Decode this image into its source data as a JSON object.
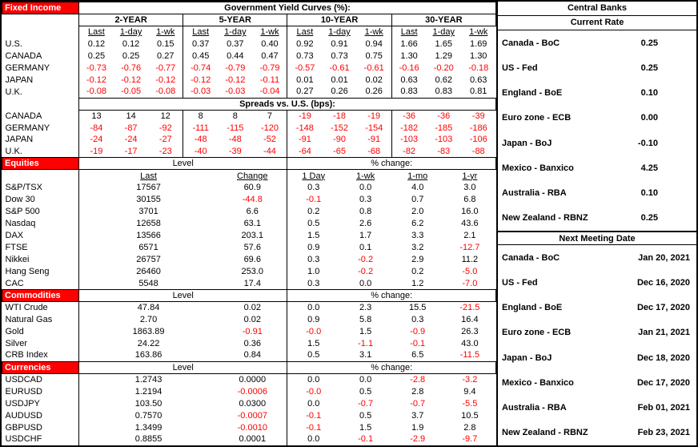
{
  "colors": {
    "accent_red": "#FF0000",
    "section_header_text": "#FFFFFF",
    "border_black": "#000000"
  },
  "fixed_income": {
    "section_label": "Fixed Income",
    "title": "Government Yield Curves (%):",
    "groups": [
      "2-YEAR",
      "5-YEAR",
      "10-YEAR",
      "30-YEAR"
    ],
    "subheaders": [
      "Last",
      "1-day",
      "1-wk"
    ],
    "yields": [
      {
        "label": "U.S.",
        "values": [
          "0.12",
          "0.12",
          "0.15",
          "0.37",
          "0.37",
          "0.40",
          "0.92",
          "0.91",
          "0.94",
          "1.66",
          "1.65",
          "1.69"
        ]
      },
      {
        "label": "CANADA",
        "values": [
          "0.25",
          "0.25",
          "0.27",
          "0.45",
          "0.44",
          "0.47",
          "0.73",
          "0.73",
          "0.75",
          "1.30",
          "1.29",
          "1.30"
        ]
      },
      {
        "label": "GERMANY",
        "values": [
          "-0.73",
          "-0.76",
          "-0.77",
          "-0.74",
          "-0.79",
          "-0.79",
          "-0.57",
          "-0.61",
          "-0.61",
          "-0.16",
          "-0.20",
          "-0.18"
        ]
      },
      {
        "label": "JAPAN",
        "values": [
          "-0.12",
          "-0.12",
          "-0.12",
          "-0.12",
          "-0.12",
          "-0.11",
          "0.01",
          "0.01",
          "0.02",
          "0.63",
          "0.62",
          "0.63"
        ]
      },
      {
        "label": "U.K.",
        "values": [
          "-0.08",
          "-0.05",
          "-0.08",
          "-0.03",
          "-0.03",
          "-0.04",
          "0.27",
          "0.26",
          "0.26",
          "0.83",
          "0.83",
          "0.81"
        ]
      }
    ],
    "spreads_title": "Spreads vs. U.S. (bps):",
    "spreads": [
      {
        "label": "CANADA",
        "values": [
          "13",
          "14",
          "12",
          "8",
          "8",
          "7",
          "-19",
          "-18",
          "-19",
          "-36",
          "-36",
          "-39"
        ]
      },
      {
        "label": "GERMANY",
        "values": [
          "-84",
          "-87",
          "-92",
          "-111",
          "-115",
          "-120",
          "-148",
          "-152",
          "-154",
          "-182",
          "-185",
          "-186"
        ]
      },
      {
        "label": "JAPAN",
        "values": [
          "-24",
          "-24",
          "-27",
          "-48",
          "-48",
          "-52",
          "-91",
          "-90",
          "-91",
          "-103",
          "-103",
          "-106"
        ]
      },
      {
        "label": "U.K.",
        "values": [
          "-19",
          "-17",
          "-23",
          "-40",
          "-39",
          "-44",
          "-64",
          "-65",
          "-68",
          "-82",
          "-83",
          "-88"
        ]
      }
    ]
  },
  "equities": {
    "section_label": "Equities",
    "level_header": "Level",
    "pct_header": "% change:",
    "subheaders": [
      "Last",
      "Change",
      "1 Day",
      "1-wk",
      "1-mo",
      "1-yr"
    ],
    "rows": [
      {
        "label": "S&P/TSX",
        "values": [
          "17567",
          "60.9",
          "0.3",
          "0.0",
          "4.0",
          "3.0"
        ]
      },
      {
        "label": "Dow 30",
        "values": [
          "30155",
          "-44.8",
          "-0.1",
          "0.3",
          "0.7",
          "6.8"
        ]
      },
      {
        "label": "S&P 500",
        "values": [
          "3701",
          "6.6",
          "0.2",
          "0.8",
          "2.0",
          "16.0"
        ]
      },
      {
        "label": "Nasdaq",
        "values": [
          "12658",
          "63.1",
          "0.5",
          "2.6",
          "6.2",
          "43.6"
        ]
      },
      {
        "label": "DAX",
        "values": [
          "13566",
          "203.1",
          "1.5",
          "1.7",
          "3.3",
          "2.1"
        ]
      },
      {
        "label": "FTSE",
        "values": [
          "6571",
          "57.6",
          "0.9",
          "0.1",
          "3.2",
          "-12.7"
        ]
      },
      {
        "label": "Nikkei",
        "values": [
          "26757",
          "69.6",
          "0.3",
          "-0.2",
          "2.9",
          "11.2"
        ]
      },
      {
        "label": "Hang Seng",
        "values": [
          "26460",
          "253.0",
          "1.0",
          "-0.2",
          "0.2",
          "-5.0"
        ]
      },
      {
        "label": "CAC",
        "values": [
          "5548",
          "17.4",
          "0.3",
          "0.0",
          "1.2",
          "-7.0"
        ]
      }
    ]
  },
  "commodities": {
    "section_label": "Commodities",
    "level_header": "Level",
    "pct_header": "% change:",
    "rows": [
      {
        "label": "WTI Crude",
        "values": [
          "47.84",
          "0.02",
          "0.0",
          "2.3",
          "15.5",
          "-21.5"
        ]
      },
      {
        "label": "Natural Gas",
        "values": [
          "2.70",
          "0.02",
          "0.9",
          "5.8",
          "0.3",
          "16.4"
        ]
      },
      {
        "label": "Gold",
        "values": [
          "1863.89",
          "-0.91",
          "-0.0",
          "1.5",
          "-0.9",
          "26.3"
        ]
      },
      {
        "label": "Silver",
        "values": [
          "24.22",
          "0.36",
          "1.5",
          "-1.1",
          "-0.1",
          "43.0"
        ]
      },
      {
        "label": "CRB Index",
        "values": [
          "163.86",
          "0.84",
          "0.5",
          "3.1",
          "6.5",
          "-11.5"
        ]
      }
    ]
  },
  "currencies": {
    "section_label": "Currencies",
    "level_header": "Level",
    "pct_header": "% change:",
    "rows": [
      {
        "label": "USDCAD",
        "values": [
          "1.2743",
          "0.0000",
          "0.0",
          "0.0",
          "-2.8",
          "-3.2"
        ]
      },
      {
        "label": "EURUSD",
        "values": [
          "1.2194",
          "-0.0006",
          "-0.0",
          "0.5",
          "2.8",
          "9.4"
        ]
      },
      {
        "label": "USDJPY",
        "values": [
          "103.50",
          "0.0300",
          "0.0",
          "-0.7",
          "-0.7",
          "-5.5"
        ]
      },
      {
        "label": "AUDUSD",
        "values": [
          "0.7570",
          "-0.0007",
          "-0.1",
          "0.5",
          "3.7",
          "10.5"
        ]
      },
      {
        "label": "GBPUSD",
        "values": [
          "1.3499",
          "-0.0010",
          "-0.1",
          "1.5",
          "1.9",
          "2.8"
        ]
      },
      {
        "label": "USDCHF",
        "values": [
          "0.8855",
          "0.0001",
          "0.0",
          "-0.1",
          "-2.9",
          "-9.7"
        ]
      }
    ]
  },
  "central_banks": {
    "title": "Central Banks",
    "current_rate_header": "Current Rate",
    "rates": [
      {
        "label": "Canada - BoC",
        "value": "0.25"
      },
      {
        "label": "US - Fed",
        "value": "0.25"
      },
      {
        "label": "England - BoE",
        "value": "0.10"
      },
      {
        "label": "Euro zone - ECB",
        "value": "0.00"
      },
      {
        "label": "Japan - BoJ",
        "value": "-0.10"
      },
      {
        "label": "Mexico - Banxico",
        "value": "4.25"
      },
      {
        "label": "Australia - RBA",
        "value": "0.10"
      },
      {
        "label": "New Zealand - RBNZ",
        "value": "0.25"
      }
    ],
    "next_meeting_header": "Next Meeting Date",
    "meetings": [
      {
        "label": "Canada - BoC",
        "value": "Jan 20, 2021"
      },
      {
        "label": "US - Fed",
        "value": "Dec 16, 2020"
      },
      {
        "label": "England - BoE",
        "value": "Dec 17, 2020"
      },
      {
        "label": "Euro zone - ECB",
        "value": "Jan 21, 2021"
      },
      {
        "label": "Japan - BoJ",
        "value": "Dec 18, 2020"
      },
      {
        "label": "Mexico - Banxico",
        "value": "Dec 17, 2020"
      },
      {
        "label": "Australia - RBA",
        "value": "Feb 01, 2021"
      },
      {
        "label": "New Zealand - RBNZ",
        "value": "Feb 23, 2021"
      }
    ]
  }
}
